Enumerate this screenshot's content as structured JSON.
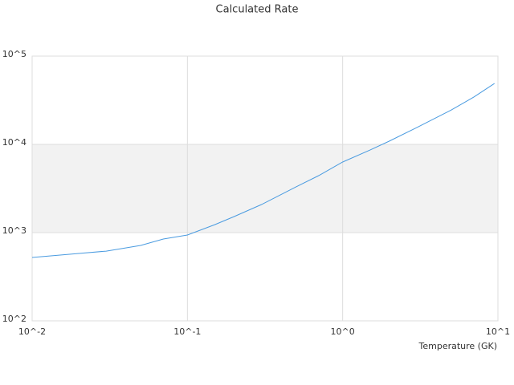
{
  "chart_data": {
    "type": "line",
    "title": "Calculated Rate",
    "x_label": "Temperature (GK)",
    "x": [
      0.01,
      0.02,
      0.03,
      0.05,
      0.07,
      0.1,
      0.15,
      0.2,
      0.3,
      0.5,
      0.7,
      1,
      1.5,
      2,
      3,
      5,
      7,
      9.5
    ],
    "series": [
      {
        "color": "#4a9be0",
        "values": [
          522,
          580,
          617,
          716,
          846,
          940,
          1230,
          1520,
          2080,
          3290,
          4420,
          6310,
          8630,
          10900,
          15500,
          24500,
          34400,
          49000
        ]
      }
    ],
    "xscale": "log",
    "yscale": "log",
    "xlim": [
      0.01,
      10
    ],
    "xticks": [
      {
        "value": 0.01,
        "label": "10^-2"
      },
      {
        "value": 0.1,
        "label": "10^-1"
      },
      {
        "value": 1,
        "label": "10^0"
      },
      {
        "value": 10,
        "label": "10^1"
      }
    ],
    "ylim": [
      100,
      100000
    ],
    "yticks": [
      {
        "value": 100,
        "label": "10^2"
      },
      {
        "value": 1000,
        "label": "10^3"
      },
      {
        "value": 10000,
        "label": "10^4"
      },
      {
        "value": 100000,
        "label": "10^5"
      }
    ],
    "grid": "bands"
  }
}
